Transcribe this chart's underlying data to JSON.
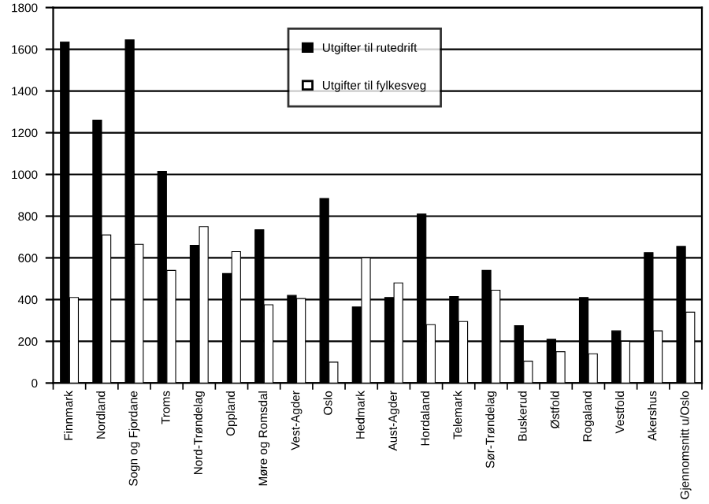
{
  "chart_data": {
    "type": "bar",
    "categories": [
      "Finnmark",
      "Nordland",
      "Sogn og Fjordane",
      "Troms",
      "Nord-Trøndelag",
      "Oppland",
      "Møre og Romsdal",
      "Vest-Agder",
      "Oslo",
      "Hedmark",
      "Aust-Agder",
      "Hordaland",
      "Telemark",
      "Sør-Trøndelag",
      "Buskerud",
      "Østfold",
      "Rogaland",
      "Vestfold",
      "Akershus",
      "Gjennomsnitt u/Oslo"
    ],
    "series": [
      {
        "name": "Utgifter til rutedrift",
        "color": "#000000",
        "values": [
          1635,
          1260,
          1645,
          1015,
          660,
          525,
          735,
          420,
          885,
          365,
          410,
          810,
          415,
          540,
          275,
          210,
          410,
          250,
          625,
          655
        ]
      },
      {
        "name": "Utgifter til fylkesveg",
        "color": "#ffffff",
        "values": [
          410,
          710,
          665,
          540,
          750,
          630,
          375,
          405,
          100,
          600,
          480,
          280,
          295,
          445,
          105,
          150,
          140,
          200,
          250,
          340
        ]
      }
    ],
    "ylim": [
      0,
      1800
    ],
    "yticks": [
      0,
      200,
      400,
      600,
      800,
      1000,
      1200,
      1400,
      1600,
      1800
    ],
    "grid": "y",
    "legend": "top"
  }
}
